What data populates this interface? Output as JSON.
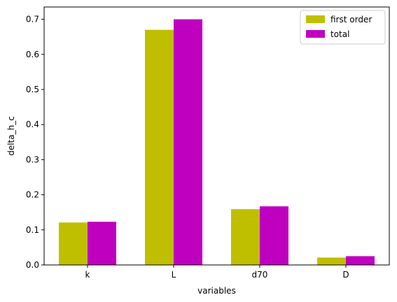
{
  "chart_data": {
    "type": "bar",
    "title": "",
    "xlabel": "variables",
    "ylabel": "delta_h_c",
    "categories": [
      "k",
      "L",
      "d70",
      "D"
    ],
    "series": [
      {
        "name": "first order",
        "color": "#bfbf00",
        "values": [
          0.121,
          0.67,
          0.159,
          0.021
        ]
      },
      {
        "name": "total",
        "color": "#bf00bf",
        "values": [
          0.123,
          0.7,
          0.167,
          0.025
        ]
      }
    ],
    "ylim": [
      0,
      0.735
    ],
    "yticks": [
      "0.0",
      "0.1",
      "0.2",
      "0.3",
      "0.4",
      "0.5",
      "0.6",
      "0.7"
    ],
    "grid": false,
    "legend": "top-right"
  }
}
